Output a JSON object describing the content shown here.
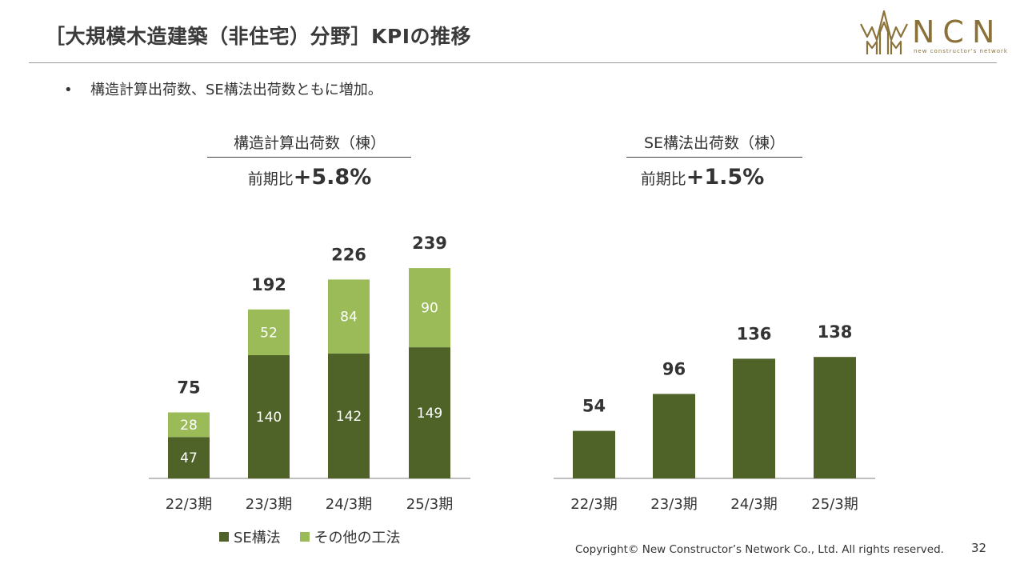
{
  "header": {
    "title": "［大規模木造建築（非住宅）分野］KPIの推移"
  },
  "logo": {
    "icon": "ncn-logo-mark-icon",
    "text": "NCN",
    "subtitle": "new constructor's network"
  },
  "bullet": {
    "text": "構造計算出荷数、SE構法出荷数ともに増加。"
  },
  "panels": {
    "left": {
      "title": "構造計算出荷数（棟）",
      "growth_prefix": "前期比",
      "growth_value": "+5.8%"
    },
    "right": {
      "title": "SE構法出荷数（棟）",
      "growth_prefix": "前期比",
      "growth_value": "+1.5%"
    }
  },
  "colors": {
    "se_method": "#4f6228",
    "other_method": "#9bbb59",
    "axis": "#999999",
    "total_label": "#333333",
    "inner_label": "#ffffff"
  },
  "chart_data": [
    {
      "type": "bar",
      "stacked": true,
      "title": "構造計算出荷数（棟）",
      "categories": [
        "22/3期",
        "23/3期",
        "24/3期",
        "25/3期"
      ],
      "series": [
        {
          "name": "SE構法",
          "values": [
            47,
            140,
            142,
            149
          ]
        },
        {
          "name": "その他の工法",
          "values": [
            28,
            52,
            84,
            90
          ]
        }
      ],
      "totals": [
        75,
        192,
        226,
        239
      ],
      "ylim": [
        0,
        260
      ],
      "grid": false,
      "legend": "bottom"
    },
    {
      "type": "bar",
      "stacked": false,
      "title": "SE構法出荷数（棟）",
      "categories": [
        "22/3期",
        "23/3期",
        "24/3期",
        "25/3期"
      ],
      "series": [
        {
          "values": [
            54,
            96,
            136,
            138
          ]
        }
      ],
      "ylim": [
        0,
        160
      ],
      "grid": false
    }
  ],
  "legend": {
    "items": [
      {
        "label": "SE構法",
        "color": "#4f6228"
      },
      {
        "label": "その他の工法",
        "color": "#9bbb59"
      }
    ]
  },
  "footer": {
    "copyright": "Copyright© New Constructor’s Network Co., Ltd. All rights reserved.",
    "page": "32"
  }
}
